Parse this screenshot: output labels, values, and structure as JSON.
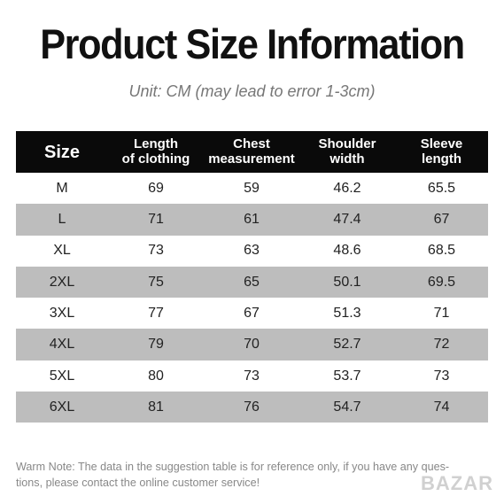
{
  "header": {
    "title": "Product Size Information",
    "subtitle": "Unit: CM (may lead to error 1-3cm)"
  },
  "table": {
    "columns": [
      [
        "Size"
      ],
      [
        "Length",
        "of clothing"
      ],
      [
        "Chest",
        "measurement"
      ],
      [
        "Shoulder",
        "width"
      ],
      [
        "Sleeve",
        "length"
      ]
    ],
    "rows": [
      [
        "M",
        69,
        59,
        46.2,
        65.5
      ],
      [
        "L",
        71,
        61,
        47.4,
        67
      ],
      [
        "XL",
        73,
        63,
        48.6,
        68.5
      ],
      [
        "2XL",
        75,
        65,
        50.1,
        69.5
      ],
      [
        "3XL",
        77,
        67,
        51.3,
        71
      ],
      [
        "4XL",
        79,
        70,
        52.7,
        72
      ],
      [
        "5XL",
        80,
        73,
        53.7,
        73
      ],
      [
        "6XL",
        81,
        76,
        54.7,
        74
      ]
    ]
  },
  "note": [
    "Warm Note: The data in the suggestion table is for reference only, if you have any ques-",
    "tions, please contact the online customer service!"
  ],
  "watermark": "BAZAR"
}
